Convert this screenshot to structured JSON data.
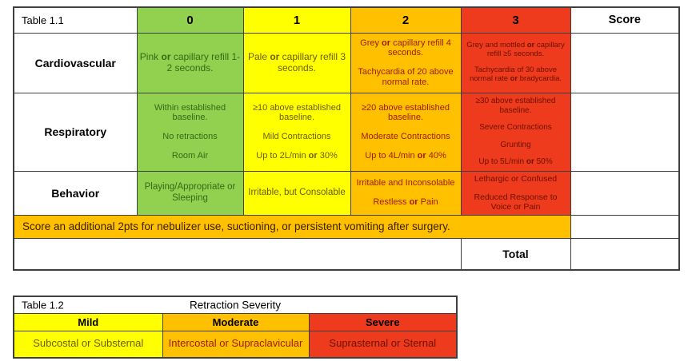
{
  "colors": {
    "green": "#92d050",
    "yellow": "#ffff00",
    "orange": "#ffc000",
    "red": "#ee3a1d",
    "green_text": "#336b15",
    "yellow_text": "#6a5d00",
    "orange_text": "#9c1b00",
    "red_text": "#6d1200",
    "border": "#3f3f3f"
  },
  "table1": {
    "title": "Table 1.1",
    "score_header": "Score",
    "column_headers": [
      "0",
      "1",
      "2",
      "3"
    ],
    "rows": [
      {
        "label": "Cardiovascular",
        "cells": [
          [
            "Pink **or** capillary refill 1-2 seconds."
          ],
          [
            "Pale **or** capillary refill 3 seconds."
          ],
          [
            "Grey **or** capillary refill 4 seconds.",
            "Tachycardia of 20 above normal rate."
          ],
          [
            "Grey and mottled **or** capillary refill ≥5 seconds.",
            "Tachycardia of 30 above normal rate **or** bradycardia."
          ]
        ]
      },
      {
        "label": "Respiratory",
        "cells": [
          [
            "Within established baseline.",
            "No retractions",
            "Room Air"
          ],
          [
            "≥10 above established baseline.",
            "Mild Contractions",
            "Up to 2L/min **or** 30%"
          ],
          [
            "≥20 above established baseline.",
            "Moderate Contractions",
            "Up to 4L/min **or** 40%"
          ],
          [
            "≥30 above established baseline.",
            "Severe Contractions",
            "Grunting",
            "Up to 5L/min **or** 50%"
          ]
        ]
      },
      {
        "label": "Behavior",
        "cells": [
          [
            "Playing/Appropriate or Sleeping"
          ],
          [
            "Irritable, but Consolable"
          ],
          [
            "Irritable and Inconsolable",
            "Restless **or** Pain"
          ],
          [
            "Lethargic or Confused",
            "Reduced Response to Voice or Pain"
          ]
        ]
      }
    ],
    "note": "Score an additional 2pts for nebulizer use, suctioning, or persistent vomiting after surgery.",
    "total_label": "Total"
  },
  "table2": {
    "title": "Table 1.2",
    "heading": "Retraction Severity",
    "columns": [
      {
        "label": "Mild",
        "value": "Subcostal or Substernal"
      },
      {
        "label": "Moderate",
        "value": "Intercostal or Supraclavicular"
      },
      {
        "label": "Severe",
        "value": "Suprasternal or Sternal"
      }
    ]
  }
}
